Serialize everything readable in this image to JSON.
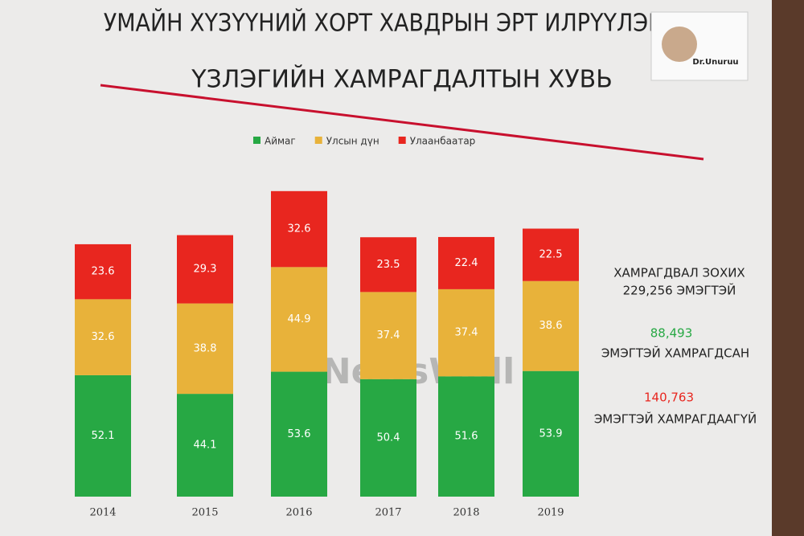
{
  "chart_data": {
    "type": "stacked_bar",
    "title_lines": [
      "УМАЙН ХҮЗҮҮНИЙ ХОРТ ХАВДРЫН ЭРТ ИЛРҮҮЛЭГ,",
      "ҮЗЛЭГИЙН ХАМРАГДАЛТЫН ХУВЬ"
    ],
    "categories": [
      "2014",
      "2015",
      "2016",
      "2017",
      "2018",
      "2019"
    ],
    "series": [
      {
        "name": "Аймаг",
        "color": "#27a844",
        "values": [
          52.1,
          44.1,
          53.6,
          50.4,
          51.6,
          53.9
        ]
      },
      {
        "name": "Улсын дүн",
        "color": "#e8b23a",
        "values": [
          32.6,
          38.8,
          44.9,
          37.4,
          37.4,
          38.6
        ]
      },
      {
        "name": "Улаанбаатар",
        "color": "#e8261f",
        "values": [
          23.6,
          29.3,
          32.6,
          23.5,
          22.4,
          22.5
        ]
      }
    ],
    "annotations": [
      "ХАМРАГДВАЛ ЗОХИХ",
      "229,256 ЭМЭГТЭЙ",
      "88,493",
      "ЭМЭГТЭЙ ХАМРАГДСАН",
      "140,763",
      "ЭМЭГТЭЙ ХАМРАГДААГҮЙ"
    ],
    "presenter": "Dr.Unuruu",
    "watermark": "NewsWall"
  }
}
